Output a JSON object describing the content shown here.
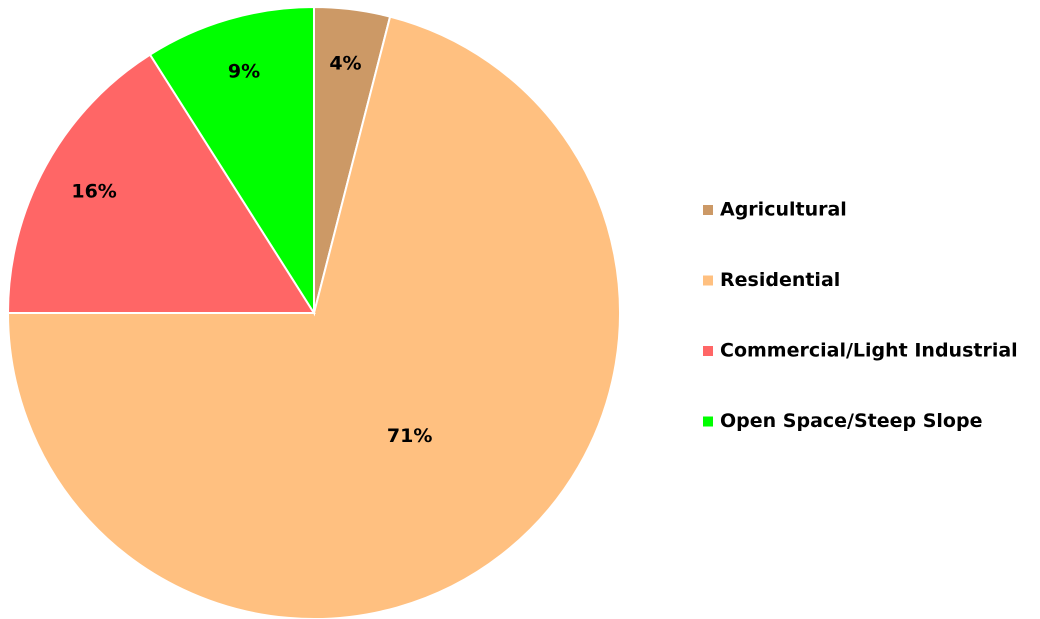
{
  "chart_data": {
    "type": "pie",
    "categories": [
      "Agricultural",
      "Residential",
      "Commercial/Light Industrial",
      "Open Space/Steep Slope"
    ],
    "values": [
      4,
      71,
      16,
      9
    ],
    "value_labels": [
      "4%",
      "71%",
      "16%",
      "9%"
    ],
    "colors": [
      "#cc9966",
      "#ffc080",
      "#ff6666",
      "#00ff00"
    ],
    "legend": "right"
  }
}
